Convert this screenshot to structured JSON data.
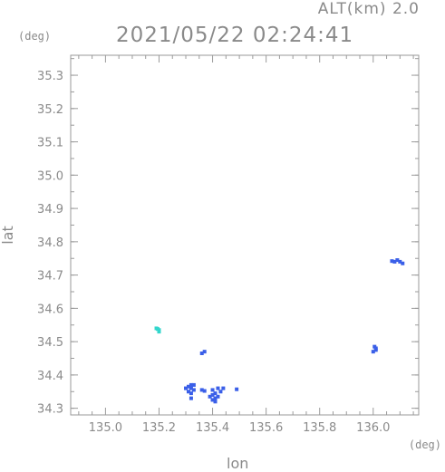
{
  "header": {
    "altitude_label": "ALT(km)  2.0",
    "timestamp": "2021/05/22  02:24:41"
  },
  "axes": {
    "y_unit": "(deg)",
    "x_unit": "(deg)",
    "xlabel": "lon",
    "ylabel": "lat"
  },
  "colors": {
    "frame": "#9a9a9a",
    "blue": "#3a5fe8",
    "cyan": "#33d6cc"
  },
  "chart_data": {
    "type": "scatter",
    "title": "",
    "xlabel": "lon",
    "ylabel": "lat",
    "xlim": [
      134.87,
      136.17
    ],
    "ylim": [
      34.28,
      35.36
    ],
    "x_ticks": [
      135.0,
      135.2,
      135.4,
      135.6,
      135.8,
      136.0
    ],
    "y_ticks": [
      34.3,
      34.4,
      34.5,
      34.6,
      34.7,
      34.8,
      34.9,
      35.0,
      35.1,
      35.2,
      35.3
    ],
    "x_tick_labels": [
      "135.0",
      "135.2",
      "135.4",
      "135.6",
      "135.8",
      "136.0"
    ],
    "y_tick_labels": [
      "34.3",
      "34.4",
      "34.5",
      "34.6",
      "34.7",
      "34.8",
      "34.9",
      "35.0",
      "35.1",
      "35.2",
      "35.3"
    ],
    "grid": false,
    "series": [
      {
        "color": "#3a5fe8",
        "points": [
          [
            136.08,
            34.74
          ],
          [
            136.1,
            34.74
          ],
          [
            136.11,
            34.735
          ],
          [
            136.09,
            34.745
          ],
          [
            136.07,
            34.742
          ],
          [
            136.01,
            34.48
          ],
          [
            136.0,
            34.47
          ],
          [
            136.01,
            34.475
          ],
          [
            136.005,
            34.485
          ],
          [
            135.37,
            34.47
          ],
          [
            135.36,
            34.465
          ],
          [
            135.31,
            34.365
          ],
          [
            135.32,
            34.36
          ],
          [
            135.33,
            34.355
          ],
          [
            135.31,
            34.35
          ],
          [
            135.32,
            34.37
          ],
          [
            135.3,
            34.36
          ],
          [
            135.33,
            34.37
          ],
          [
            135.32,
            34.345
          ],
          [
            135.36,
            34.355
          ],
          [
            135.37,
            34.352
          ],
          [
            135.4,
            34.34
          ],
          [
            135.41,
            34.33
          ],
          [
            135.42,
            34.335
          ],
          [
            135.4,
            34.325
          ],
          [
            135.41,
            34.345
          ],
          [
            135.43,
            34.35
          ],
          [
            135.42,
            34.36
          ],
          [
            135.4,
            34.355
          ],
          [
            135.41,
            34.32
          ],
          [
            135.44,
            34.36
          ],
          [
            135.39,
            34.335
          ],
          [
            135.49,
            34.357
          ],
          [
            135.32,
            34.33
          ]
        ]
      },
      {
        "color": "#33d6cc",
        "points": [
          [
            135.19,
            34.54
          ],
          [
            135.2,
            34.535
          ],
          [
            135.2,
            34.53
          ],
          [
            135.195,
            34.538
          ]
        ]
      }
    ]
  }
}
